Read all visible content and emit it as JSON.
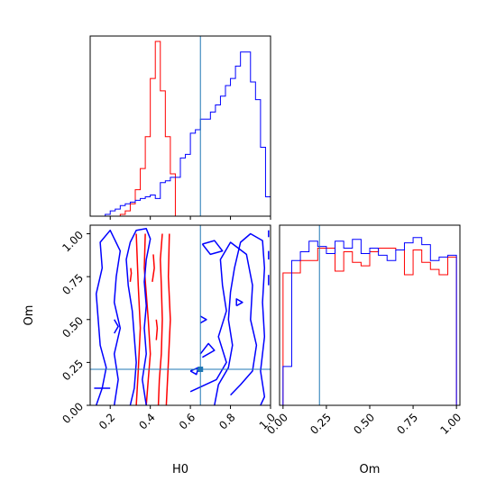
{
  "chart_data": {
    "type": "corner",
    "parameters": [
      "H0",
      "Om"
    ],
    "truths": {
      "H0": 0.65,
      "Om": 0.21
    },
    "truth_color": "#1f77b4",
    "series": [
      {
        "color": "#ff0000"
      },
      {
        "color": "#0000ff"
      }
    ],
    "panels": {
      "H0_hist": {
        "type": "histogram",
        "xlim": [
          0.1,
          1.0
        ],
        "xticks": [
          0.2,
          0.4,
          0.6,
          0.8,
          1.0
        ],
        "bin_edges": [
          0.1,
          0.125,
          0.15,
          0.175,
          0.2,
          0.225,
          0.25,
          0.275,
          0.3,
          0.325,
          0.35,
          0.375,
          0.4,
          0.425,
          0.45,
          0.475,
          0.5,
          0.525,
          0.55,
          0.575,
          0.6,
          0.625,
          0.65,
          0.675,
          0.7,
          0.725,
          0.75,
          0.775,
          0.8,
          0.825,
          0.85,
          0.875,
          0.9,
          0.925,
          0.95,
          0.975,
          1.0
        ],
        "counts": [
          [
            0,
            0,
            0,
            0,
            0,
            0,
            0.01,
            0.03,
            0.07,
            0.15,
            0.27,
            0.45,
            0.78,
            0.99,
            0.71,
            0.45,
            0.24,
            0,
            0,
            0,
            0,
            0,
            0,
            0,
            0,
            0,
            0,
            0,
            0,
            0,
            0,
            0,
            0,
            0,
            0,
            0
          ],
          [
            0,
            0,
            0,
            0.01,
            0.03,
            0.04,
            0.06,
            0.07,
            0.08,
            0.09,
            0.1,
            0.11,
            0.12,
            0.1,
            0.19,
            0.2,
            0.22,
            0.22,
            0.33,
            0.35,
            0.47,
            0.49,
            0.55,
            0.55,
            0.59,
            0.63,
            0.68,
            0.74,
            0.78,
            0.85,
            0.93,
            0.93,
            0.76,
            0.66,
            0.39,
            0.11
          ]
        ]
      },
      "H0_Om": {
        "type": "contour",
        "xlim": [
          0.1,
          1.0
        ],
        "ylim": [
          0.0,
          1.05
        ],
        "xticks": [
          0.2,
          0.4,
          0.6,
          0.8,
          1.0
        ],
        "yticks": [
          0.0,
          0.25,
          0.5,
          0.75,
          1.0
        ],
        "xlabel": "H0",
        "ylabel": "Om",
        "curves": [
          [
            [
              [
                0.38,
                0.0
              ],
              [
                0.39,
                0.15
              ],
              [
                0.4,
                0.3
              ],
              [
                0.39,
                0.5
              ],
              [
                0.38,
                0.65
              ],
              [
                0.37,
                0.8
              ],
              [
                0.375,
                1.0
              ]
            ],
            [
              [
                0.44,
                0.0
              ],
              [
                0.445,
                0.15
              ],
              [
                0.455,
                0.3
              ],
              [
                0.46,
                0.5
              ],
              [
                0.455,
                0.7
              ],
              [
                0.45,
                0.85
              ],
              [
                0.46,
                1.0
              ]
            ],
            [
              [
                0.33,
                0.0
              ],
              [
                0.34,
                0.2
              ],
              [
                0.35,
                0.45
              ],
              [
                0.34,
                0.7
              ],
              [
                0.33,
                1.0
              ]
            ],
            [
              [
                0.48,
                0.0
              ],
              [
                0.49,
                0.25
              ],
              [
                0.5,
                0.5
              ],
              [
                0.49,
                0.75
              ],
              [
                0.495,
                1.0
              ]
            ],
            [
              [
                0.41,
                0.72
              ],
              [
                0.42,
                0.8
              ],
              [
                0.415,
                0.88
              ]
            ],
            [
              [
                0.3,
                0.72
              ],
              [
                0.305,
                0.77
              ],
              [
                0.302,
                0.8
              ]
            ],
            [
              [
                0.43,
                0.38
              ],
              [
                0.435,
                0.45
              ],
              [
                0.43,
                0.5
              ]
            ]
          ],
          [
            [
              [
                0.3,
                0.0
              ],
              [
                0.32,
                0.1
              ],
              [
                0.33,
                0.25
              ],
              [
                0.32,
                0.4
              ],
              [
                0.31,
                0.55
              ],
              [
                0.29,
                0.7
              ],
              [
                0.28,
                0.85
              ],
              [
                0.3,
                0.95
              ],
              [
                0.33,
                1.02
              ],
              [
                0.38,
                1.03
              ],
              [
                0.4,
                0.97
              ],
              [
                0.38,
                0.85
              ],
              [
                0.37,
                0.72
              ],
              [
                0.38,
                0.58
              ],
              [
                0.37,
                0.45
              ],
              [
                0.38,
                0.3
              ],
              [
                0.36,
                0.15
              ],
              [
                0.38,
                0.0
              ]
            ],
            [
              [
                0.13,
                0.0
              ],
              [
                0.16,
                0.1
              ],
              [
                0.18,
                0.22
              ],
              [
                0.15,
                0.35
              ],
              [
                0.14,
                0.5
              ],
              [
                0.13,
                0.65
              ],
              [
                0.16,
                0.8
              ],
              [
                0.15,
                0.95
              ],
              [
                0.2,
                1.02
              ],
              [
                0.25,
                0.9
              ],
              [
                0.23,
                0.75
              ],
              [
                0.22,
                0.6
              ],
              [
                0.25,
                0.45
              ],
              [
                0.22,
                0.3
              ],
              [
                0.24,
                0.15
              ],
              [
                0.22,
                0.0
              ]
            ],
            [
              [
                0.72,
                0.0
              ],
              [
                0.74,
                0.12
              ],
              [
                0.79,
                0.22
              ],
              [
                0.81,
                0.35
              ],
              [
                0.79,
                0.5
              ],
              [
                0.8,
                0.66
              ],
              [
                0.82,
                0.8
              ],
              [
                0.85,
                0.95
              ],
              [
                0.9,
                1.0
              ],
              [
                0.96,
                0.96
              ],
              [
                0.97,
                0.8
              ],
              [
                0.96,
                0.6
              ],
              [
                0.97,
                0.4
              ],
              [
                0.95,
                0.2
              ],
              [
                0.97,
                0.05
              ],
              [
                0.95,
                0.0
              ]
            ],
            [
              [
                0.8,
                0.06
              ],
              [
                0.85,
                0.12
              ],
              [
                0.91,
                0.2
              ],
              [
                0.93,
                0.35
              ],
              [
                0.9,
                0.5
              ],
              [
                0.91,
                0.7
              ],
              [
                0.88,
                0.88
              ],
              [
                0.8,
                0.95
              ],
              [
                0.75,
                0.85
              ],
              [
                0.76,
                0.7
              ],
              [
                0.78,
                0.55
              ],
              [
                0.74,
                0.4
              ],
              [
                0.78,
                0.25
              ],
              [
                0.73,
                0.15
              ],
              [
                0.6,
                0.08
              ]
            ],
            [
              [
                0.66,
                0.94
              ],
              [
                0.72,
                0.96
              ],
              [
                0.76,
                0.9
              ],
              [
                0.7,
                0.88
              ],
              [
                0.66,
                0.94
              ]
            ],
            [
              [
                0.66,
                0.28
              ],
              [
                0.72,
                0.32
              ],
              [
                0.69,
                0.36
              ],
              [
                0.65,
                0.3
              ]
            ],
            [
              [
                0.65,
                0.48
              ],
              [
                0.68,
                0.5
              ],
              [
                0.65,
                0.52
              ]
            ],
            [
              [
                0.83,
                0.58
              ],
              [
                0.86,
                0.6
              ],
              [
                0.83,
                0.62
              ],
              [
                0.83,
                0.58
              ]
            ],
            [
              [
                0.22,
                0.42
              ],
              [
                0.24,
                0.46
              ],
              [
                0.22,
                0.5
              ]
            ],
            [
              [
                0.6,
                0.2
              ],
              [
                0.64,
                0.22
              ],
              [
                0.63,
                0.18
              ],
              [
                0.6,
                0.2
              ]
            ],
            [
              [
                0.12,
                0.1
              ],
              [
                0.2,
                0.1
              ]
            ],
            [
              [
                0.99,
                0.85
              ],
              [
                0.99,
                0.9
              ]
            ],
            [
              [
                0.99,
                0.7
              ],
              [
                0.99,
                0.76
              ]
            ],
            [
              [
                0.99,
                0.98
              ],
              [
                0.99,
                1.02
              ]
            ]
          ]
        ]
      },
      "Om_hist": {
        "type": "histogram",
        "xlim": [
          -0.02,
          1.02
        ],
        "xticks": [
          0.0,
          0.25,
          0.5,
          0.75,
          1.0
        ],
        "xticklabels": [
          "0.00",
          "0.25",
          "0.50",
          "0.75",
          "1.00"
        ],
        "xlabel": "Om",
        "bin_edges": [
          0.0,
          0.05,
          0.1,
          0.15,
          0.2,
          0.25,
          0.3,
          0.35,
          0.4,
          0.45,
          0.5,
          0.55,
          0.6,
          0.65,
          0.7,
          0.75,
          0.8,
          0.85,
          0.9,
          0.95,
          1.0
        ],
        "counts": [
          [
            0.75,
            0.75,
            0.82,
            0.82,
            0.89,
            0.89,
            0.76,
            0.87,
            0.81,
            0.79,
            0.87,
            0.89,
            0.89,
            0.88,
            0.74,
            0.88,
            0.81,
            0.77,
            0.74,
            0.84
          ],
          [
            0.22,
            0.82,
            0.87,
            0.93,
            0.9,
            0.86,
            0.93,
            0.89,
            0.94,
            0.86,
            0.89,
            0.85,
            0.82,
            0.88,
            0.92,
            0.95,
            0.91,
            0.82,
            0.84,
            0.85
          ]
        ]
      }
    }
  }
}
